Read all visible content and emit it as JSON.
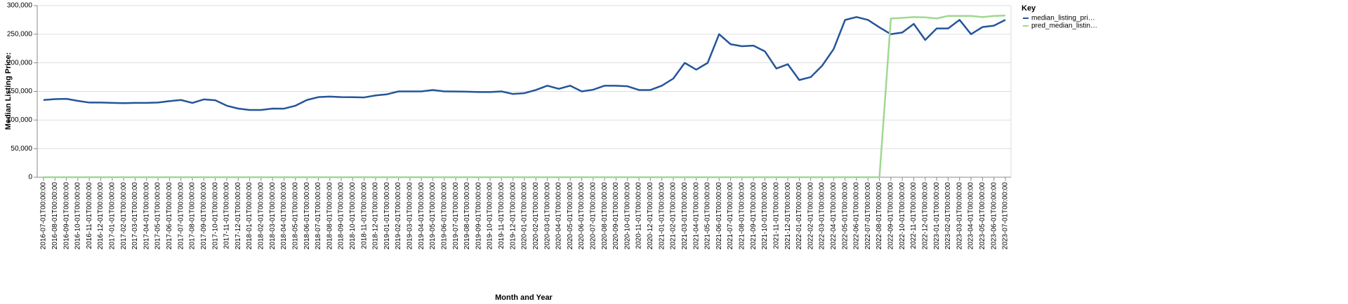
{
  "chart_data": {
    "type": "line",
    "x_label": "Month and Year",
    "y_label": "Median Listing Price:",
    "legend_title": "Key",
    "legend_position": "right",
    "grid": true,
    "categories": [
      "2016-07-01T00:00:00",
      "2016-08-01T00:00:00",
      "2016-09-01T00:00:00",
      "2016-10-01T00:00:00",
      "2016-11-01T00:00:00",
      "2016-12-01T00:00:00",
      "2017-01-01T00:00:00",
      "2017-02-01T00:00:00",
      "2017-03-01T00:00:00",
      "2017-04-01T00:00:00",
      "2017-05-01T00:00:00",
      "2017-06-01T00:00:00",
      "2017-07-01T00:00:00",
      "2017-08-01T00:00:00",
      "2017-09-01T00:00:00",
      "2017-10-01T00:00:00",
      "2017-11-01T00:00:00",
      "2017-12-01T00:00:00",
      "2018-01-01T00:00:00",
      "2018-02-01T00:00:00",
      "2018-03-01T00:00:00",
      "2018-04-01T00:00:00",
      "2018-05-01T00:00:00",
      "2018-06-01T00:00:00",
      "2018-07-01T00:00:00",
      "2018-08-01T00:00:00",
      "2018-09-01T00:00:00",
      "2018-10-01T00:00:00",
      "2018-11-01T00:00:00",
      "2018-12-01T00:00:00",
      "2019-01-01T00:00:00",
      "2019-02-01T00:00:00",
      "2019-03-01T00:00:00",
      "2019-04-01T00:00:00",
      "2019-05-01T00:00:00",
      "2019-06-01T00:00:00",
      "2019-07-01T00:00:00",
      "2019-08-01T00:00:00",
      "2019-09-01T00:00:00",
      "2019-10-01T00:00:00",
      "2019-11-01T00:00:00",
      "2019-12-01T00:00:00",
      "2020-01-01T00:00:00",
      "2020-02-01T00:00:00",
      "2020-03-01T00:00:00",
      "2020-04-01T00:00:00",
      "2020-05-01T00:00:00",
      "2020-06-01T00:00:00",
      "2020-07-01T00:00:00",
      "2020-08-01T00:00:00",
      "2020-09-01T00:00:00",
      "2020-10-01T00:00:00",
      "2020-11-01T00:00:00",
      "2020-12-01T00:00:00",
      "2021-01-01T00:00:00",
      "2021-02-01T00:00:00",
      "2021-03-01T00:00:00",
      "2021-04-01T00:00:00",
      "2021-05-01T00:00:00",
      "2021-06-01T00:00:00",
      "2021-07-01T00:00:00",
      "2021-08-01T00:00:00",
      "2021-09-01T00:00:00",
      "2021-10-01T00:00:00",
      "2021-11-01T00:00:00",
      "2021-12-01T00:00:00",
      "2022-01-01T00:00:00",
      "2022-02-01T00:00:00",
      "2022-03-01T00:00:00",
      "2022-04-01T00:00:00",
      "2022-05-01T00:00:00",
      "2022-06-01T00:00:00",
      "2022-07-01T00:00:00",
      "2022-08-01T00:00:00",
      "2022-09-01T00:00:00",
      "2022-10-01T00:00:00",
      "2022-11-01T00:00:00",
      "2022-12-01T00:00:00",
      "2023-01-01T00:00:00",
      "2023-02-01T00:00:00",
      "2023-03-01T00:00:00",
      "2023-04-01T00:00:00",
      "2023-05-01T00:00:00",
      "2023-06-01T00:00:00",
      "2023-07-01T00:00:00"
    ],
    "series": [
      {
        "name": "median_listing_pri…",
        "color": "#24559a",
        "values": [
          135000,
          136500,
          137000,
          133500,
          130500,
          130500,
          129900,
          129500,
          129900,
          130000,
          130500,
          133000,
          135000,
          129900,
          136000,
          134500,
          125000,
          120000,
          117500,
          117500,
          120000,
          119900,
          125000,
          135000,
          140000,
          141000,
          140000,
          139900,
          139500,
          143000,
          145000,
          150000,
          150000,
          150000,
          152500,
          150000,
          149900,
          149500,
          149000,
          149000,
          150000,
          145500,
          147000,
          152500,
          160000,
          154500,
          160000,
          150000,
          153000,
          160000,
          159900,
          159000,
          152500,
          152500,
          160000,
          172500,
          199900,
          188000,
          199900,
          250000,
          232500,
          229000,
          230000,
          220000,
          190000,
          197500,
          169900,
          175000,
          195000,
          224000,
          274900,
          280000,
          275000,
          262000,
          250000,
          253000,
          268000,
          240000,
          260000,
          260000,
          275000,
          250000,
          262500,
          265000,
          275000
        ]
      },
      {
        "name": "pred_median_listin…",
        "color": "#9fd891",
        "values": [
          0,
          0,
          0,
          0,
          0,
          0,
          0,
          0,
          0,
          0,
          0,
          0,
          0,
          0,
          0,
          0,
          0,
          0,
          0,
          0,
          0,
          0,
          0,
          0,
          0,
          0,
          0,
          0,
          0,
          0,
          0,
          0,
          0,
          0,
          0,
          0,
          0,
          0,
          0,
          0,
          0,
          0,
          0,
          0,
          0,
          0,
          0,
          0,
          0,
          0,
          0,
          0,
          0,
          0,
          0,
          0,
          0,
          0,
          0,
          0,
          0,
          0,
          0,
          0,
          0,
          0,
          0,
          0,
          0,
          0,
          0,
          0,
          0,
          0,
          277500,
          278500,
          280000,
          279500,
          277500,
          282000,
          282000,
          282000,
          280000,
          282000,
          282500
        ]
      }
    ],
    "ylim": [
      0,
      300000
    ],
    "yticks": [
      {
        "value": 0,
        "label": "0"
      },
      {
        "value": 50000,
        "label": "50,000"
      },
      {
        "value": 100000,
        "label": "100,000"
      },
      {
        "value": 150000,
        "label": "150,000"
      },
      {
        "value": 200000,
        "label": "200,000"
      },
      {
        "value": 250000,
        "label": "250,000"
      },
      {
        "value": 300000,
        "label": "300,000"
      }
    ]
  }
}
